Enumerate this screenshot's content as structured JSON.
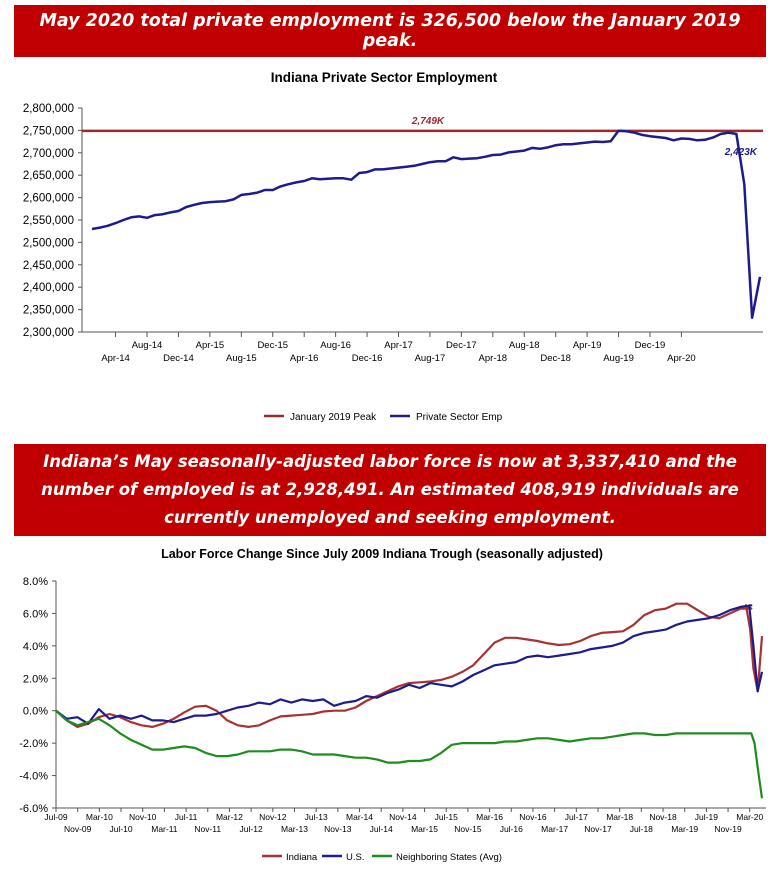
{
  "banner1": {
    "text": "May 2020 total private employment is 326,500 below the January 2019 peak."
  },
  "banner2": {
    "text": "Indiana’s May seasonally-adjusted labor force is now at 3,337,410 and the number of employed is at 2,928,491. An estimated 408,919 individuals are currently unemployed and seeking employment."
  },
  "colors": {
    "banner": "#c00000",
    "peak_line": "#9b2b2b",
    "emp_line": "#1c1c8c",
    "indiana": "#a83232",
    "us": "#1c1c8c",
    "neighbor": "#1e8c1e"
  },
  "chart_data": [
    {
      "type": "line",
      "title": "Indiana Private Sector Employment",
      "ylim": [
        2300000,
        2800000
      ],
      "yticks": [
        "2,800,000",
        "2,750,000",
        "2,700,000",
        "2,650,000",
        "2,600,000",
        "2,550,000",
        "2,500,000",
        "2,450,000",
        "2,400,000",
        "2,350,000",
        "2,300,000"
      ],
      "xticks_upper": [
        "Aug-14",
        "Apr-15",
        "Dec-15",
        "Aug-16",
        "Apr-17",
        "Dec-17",
        "Aug-18",
        "Apr-19",
        "Dec-19"
      ],
      "xticks_lower": [
        "Apr-14",
        "Dec-14",
        "Aug-15",
        "Apr-16",
        "Dec-16",
        "Aug-17",
        "Apr-18",
        "Dec-18",
        "Aug-19",
        "Apr-20"
      ],
      "legend_position": "bottom",
      "annotations": {
        "peak": "2,749K",
        "last": "2,423K"
      },
      "series": [
        {
          "name": "January 2019 Peak",
          "values": [
            2749000,
            2749000
          ]
        },
        {
          "name": "Private Sector Emp",
          "values": [
            2530000,
            2533000,
            2537000,
            2543000,
            2550000,
            2556000,
            2558000,
            2555000,
            2561000,
            2563000,
            2567000,
            2570000,
            2579000,
            2584000,
            2588000,
            2590000,
            2591000,
            2592000,
            2596000,
            2606000,
            2608000,
            2611000,
            2617000,
            2617000,
            2625000,
            2630000,
            2634000,
            2637000,
            2643000,
            2641000,
            2642000,
            2643000,
            2643000,
            2640000,
            2655000,
            2657000,
            2663000,
            2663000,
            2665000,
            2667000,
            2669000,
            2671000,
            2675000,
            2679000,
            2681000,
            2681000,
            2690000,
            2686000,
            2687000,
            2688000,
            2691000,
            2695000,
            2696000,
            2701000,
            2703000,
            2705000,
            2711000,
            2709000,
            2712000,
            2717000,
            2719000,
            2719000,
            2721000,
            2723000,
            2725000,
            2724000,
            2726000,
            2749000,
            2748000,
            2745000,
            2740000,
            2737000,
            2735000,
            2733000,
            2728000,
            2732000,
            2731000,
            2728000,
            2729000,
            2734000,
            2742000,
            2745000,
            2742000,
            2630000,
            2332000,
            2423000
          ]
        }
      ]
    },
    {
      "type": "line",
      "title": "Labor Force Change Since July 2009 Indiana Trough (seasonally adjusted)",
      "ylim": [
        -6.0,
        8.0
      ],
      "yticks": [
        "8.0%",
        "6.0%",
        "4.0%",
        "2.0%",
        "0.0%",
        "-2.0%",
        "-4.0%",
        "-6.0%"
      ],
      "xticks_upper": [
        "Jul-09",
        "Mar-10",
        "Nov-10",
        "Jul-11",
        "Mar-12",
        "Nov-12",
        "Jul-13",
        "Mar-14",
        "Nov-14",
        "Jul-15",
        "Mar-16",
        "Nov-16",
        "Jul-17",
        "Mar-18",
        "Nov-18",
        "Jul-19",
        "Mar-20"
      ],
      "xticks_lower": [
        "Nov-09",
        "Jul-10",
        "Mar-11",
        "Nov-11",
        "Jul-12",
        "Mar-13",
        "Nov-13",
        "Jul-14",
        "Mar-15",
        "Nov-15",
        "Jul-16",
        "Mar-17",
        "Nov-17",
        "Jul-18",
        "Mar-19",
        "Nov-19"
      ],
      "legend_position": "bottom",
      "series": [
        {
          "name": "Indiana",
          "x": [
            0,
            2,
            4,
            6,
            8,
            10,
            12,
            14,
            16,
            18,
            20,
            22,
            24,
            26,
            28,
            30,
            32,
            34,
            36,
            38,
            40,
            42,
            44,
            46,
            48,
            50,
            52,
            54,
            56,
            58,
            60,
            62,
            64,
            66,
            68,
            70,
            72,
            74,
            76,
            78,
            80,
            82,
            84,
            86,
            88,
            90,
            92,
            94,
            96,
            98,
            100,
            102,
            104,
            106,
            108,
            110,
            112,
            114,
            116,
            118,
            120,
            122,
            124,
            126,
            128,
            130,
            1000
          ],
          "values": [
            0.0,
            -0.6,
            -1.0,
            -0.8,
            -0.4,
            -0.2,
            -0.4,
            -0.7,
            -0.9,
            -1.0,
            -0.8,
            -0.5,
            -0.1,
            0.25,
            0.3,
            0.0,
            -0.6,
            -0.9,
            -1.0,
            -0.9,
            -0.6,
            -0.35,
            -0.3,
            -0.25,
            -0.2,
            -0.05,
            0.0,
            0.0,
            0.2,
            0.6,
            0.9,
            1.2,
            1.5,
            1.7,
            1.75,
            1.8,
            1.9,
            2.1,
            2.4,
            2.8,
            3.5,
            4.2,
            4.5,
            4.5,
            4.4,
            4.3,
            4.15,
            4.05,
            4.1,
            4.3,
            4.6,
            4.8,
            4.85,
            4.9,
            5.3,
            5.9,
            6.2,
            6.3,
            6.6,
            6.6,
            6.2,
            5.8,
            5.7,
            6.0,
            6.3,
            6.3,
            6.3
          ]
        },
        {
          "name": "U.S.",
          "x": [
            0,
            2,
            4,
            6,
            8,
            10,
            12,
            14,
            16,
            18,
            20,
            22,
            24,
            26,
            28,
            30,
            32,
            34,
            36,
            38,
            40,
            42,
            44,
            46,
            48,
            50,
            52,
            54,
            56,
            58,
            60,
            62,
            64,
            66,
            68,
            70,
            72,
            74,
            76,
            78,
            80,
            82,
            84,
            86,
            88,
            90,
            92,
            94,
            96,
            98,
            100,
            102,
            104,
            106,
            108,
            110,
            112,
            114,
            116,
            118,
            120,
            122,
            124,
            126,
            128,
            130
          ],
          "values": [
            0.0,
            -0.5,
            -0.4,
            -0.8,
            0.1,
            -0.5,
            -0.3,
            -0.5,
            -0.3,
            -0.6,
            -0.6,
            -0.7,
            -0.5,
            -0.3,
            -0.3,
            -0.2,
            0.0,
            0.2,
            0.3,
            0.5,
            0.4,
            0.7,
            0.5,
            0.7,
            0.6,
            0.7,
            0.3,
            0.5,
            0.6,
            0.9,
            0.8,
            1.1,
            1.3,
            1.6,
            1.4,
            1.7,
            1.6,
            1.5,
            1.8,
            2.2,
            2.5,
            2.8,
            2.9,
            3.0,
            3.3,
            3.4,
            3.3,
            3.4,
            3.5,
            3.6,
            3.8,
            3.9,
            4.0,
            4.2,
            4.6,
            4.8,
            4.9,
            5.0,
            5.3,
            5.5,
            5.6,
            5.7,
            5.9,
            6.2,
            6.4,
            6.5
          ]
        },
        {
          "name": "Neighboring States (Avg)",
          "x": [
            0,
            2,
            4,
            6,
            8,
            10,
            12,
            14,
            16,
            18,
            20,
            22,
            24,
            26,
            28,
            30,
            32,
            34,
            36,
            38,
            40,
            42,
            44,
            46,
            48,
            50,
            52,
            54,
            56,
            58,
            60,
            62,
            64,
            66,
            68,
            70,
            72,
            74,
            76,
            78,
            80,
            82,
            84,
            86,
            88,
            90,
            92,
            94,
            96,
            98,
            100,
            102,
            104,
            106,
            108,
            110,
            112,
            114,
            116,
            118,
            120,
            122,
            124,
            126,
            128,
            130
          ],
          "values": [
            0.0,
            -0.6,
            -0.9,
            -0.7,
            -0.5,
            -0.9,
            -1.4,
            -1.8,
            -2.1,
            -2.4,
            -2.4,
            -2.3,
            -2.2,
            -2.3,
            -2.6,
            -2.8,
            -2.8,
            -2.7,
            -2.5,
            -2.5,
            -2.5,
            -2.4,
            -2.4,
            -2.5,
            -2.7,
            -2.7,
            -2.7,
            -2.8,
            -2.9,
            -2.9,
            -3.0,
            -3.2,
            -3.2,
            -3.1,
            -3.1,
            -3.0,
            -2.6,
            -2.1,
            -2.0,
            -2.0,
            -2.0,
            -2.0,
            -1.9,
            -1.9,
            -1.8,
            -1.7,
            -1.7,
            -1.8,
            -1.9,
            -1.8,
            -1.7,
            -1.7,
            -1.6,
            -1.5,
            -1.4,
            -1.4,
            -1.5,
            -1.5,
            -1.4,
            -1.4,
            -1.4,
            -1.4,
            -1.4,
            -1.4,
            -1.4,
            -1.4
          ]
        }
      ]
    }
  ]
}
